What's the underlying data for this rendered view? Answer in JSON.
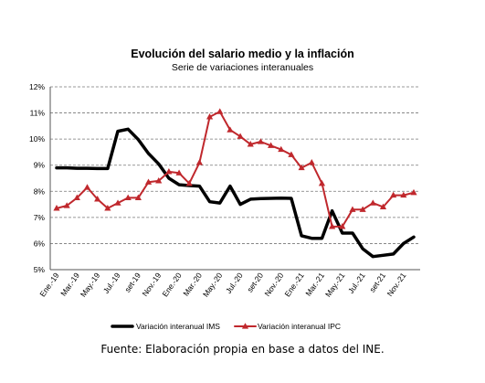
{
  "chart_data": {
    "type": "line",
    "title": "Evolución del salario medio y la inflación",
    "subtitle": "Serie de variaciones interanuales",
    "categories": [
      "Ene.-19",
      "Feb.-19",
      "Mar.-19",
      "Abr.-19",
      "May.-19",
      "Jun.-19",
      "Jul.-19",
      "Ago.-19",
      "set-19",
      "Oct.-19",
      "Nov.-19",
      "Dic.-19",
      "Ene.-20",
      "Feb.-20",
      "Mar.-20",
      "Abr.-20",
      "May.-20",
      "Jun.-20",
      "Jul.-20",
      "Ago.-20",
      "set-20",
      "Oct.-20",
      "Nov.-20",
      "Dic.-20",
      "Ene.-21",
      "Feb.-21",
      "Mar.-21",
      "Abr.-21",
      "May.-21",
      "Jun.-21",
      "Jul.-21",
      "Ago.-21",
      "set-21",
      "Oct.-21",
      "Nov.-21",
      "Dic.-21"
    ],
    "x_tick_labels": [
      "Ene.-19",
      "",
      "Mar.-19",
      "",
      "May.-19",
      "",
      "Jul.-19",
      "",
      "set-19",
      "",
      "Nov.-19",
      "",
      "Ene.-20",
      "",
      "Mar.-20",
      "",
      "May.-20",
      "",
      "Jul.-20",
      "",
      "set-20",
      "",
      "Nov.-20",
      "",
      "Ene.-21",
      "",
      "Mar.-21",
      "",
      "May.-21",
      "",
      "Jul.-21",
      "",
      "set-21",
      "",
      "Nov.-21",
      ""
    ],
    "y_tick_labels": [
      "5%",
      "6%",
      "7%",
      "8%",
      "9%",
      "10%",
      "11%",
      "12%"
    ],
    "ylim": [
      5,
      12
    ],
    "grid": true,
    "legend_position": "bottom",
    "series": [
      {
        "name": "Variación interanual IMS",
        "color": "#000000",
        "marker": "none",
        "values": [
          8.9,
          8.9,
          8.88,
          8.88,
          8.87,
          8.87,
          10.3,
          10.38,
          9.98,
          9.45,
          9.05,
          8.5,
          8.25,
          8.22,
          8.2,
          7.6,
          7.55,
          8.2,
          7.5,
          7.7,
          7.72,
          7.73,
          7.74,
          7.73,
          6.3,
          6.2,
          6.2,
          7.25,
          6.4,
          6.4,
          5.8,
          5.5,
          5.55,
          5.6,
          6.0,
          6.25
        ]
      },
      {
        "name": "Variación interanual IPC",
        "color": "#c0282d",
        "marker": "triangle",
        "values": [
          7.35,
          7.45,
          7.75,
          8.15,
          7.7,
          7.35,
          7.55,
          7.75,
          7.75,
          8.35,
          8.4,
          8.75,
          8.7,
          8.3,
          9.1,
          10.85,
          11.05,
          10.35,
          10.1,
          9.8,
          9.9,
          9.75,
          9.6,
          9.4,
          8.9,
          9.1,
          8.3,
          6.65,
          6.65,
          7.3,
          7.3,
          7.55,
          7.4,
          7.85,
          7.85,
          7.95
        ]
      }
    ]
  },
  "source_text": "Fuente: Elaboración propia en base a datos del INE."
}
